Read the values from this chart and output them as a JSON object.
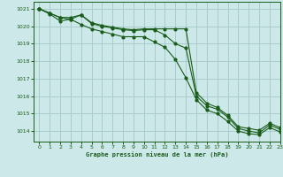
{
  "title": "Graphe pression niveau de la mer (hPa)",
  "background_color": "#cce8e8",
  "grid_color": "#aacccc",
  "line_color": "#1a5c1a",
  "xlim": [
    -0.5,
    23
  ],
  "ylim": [
    1013.4,
    1021.4
  ],
  "yticks": [
    1014,
    1015,
    1016,
    1017,
    1018,
    1019,
    1020,
    1021
  ],
  "xticks": [
    0,
    1,
    2,
    3,
    4,
    5,
    6,
    7,
    8,
    9,
    10,
    11,
    12,
    13,
    14,
    15,
    16,
    17,
    18,
    19,
    20,
    21,
    22,
    23
  ],
  "s1": [
    1021.0,
    1020.75,
    1020.5,
    1020.5,
    1020.65,
    1020.2,
    1020.05,
    1019.95,
    1019.85,
    1019.8,
    1019.85,
    1019.85,
    1019.85,
    1019.85,
    1019.85,
    1016.2,
    1015.6,
    1015.35,
    1014.9,
    1014.25,
    1014.15,
    1014.05,
    1014.45,
    1014.2
  ],
  "s2": [
    1021.0,
    1020.75,
    1020.5,
    1020.4,
    1020.65,
    1020.15,
    1020.0,
    1019.9,
    1019.8,
    1019.75,
    1019.8,
    1019.8,
    1019.5,
    1019.0,
    1018.75,
    1016.0,
    1015.45,
    1015.25,
    1014.8,
    1014.15,
    1014.0,
    1013.9,
    1014.35,
    1014.1
  ],
  "s3": [
    1021.0,
    1020.7,
    1020.3,
    1020.4,
    1020.1,
    1019.85,
    1019.7,
    1019.55,
    1019.4,
    1019.4,
    1019.4,
    1019.1,
    1018.8,
    1018.1,
    1017.05,
    1015.8,
    1015.2,
    1015.0,
    1014.55,
    1014.0,
    1013.85,
    1013.8,
    1014.2,
    1013.95
  ]
}
